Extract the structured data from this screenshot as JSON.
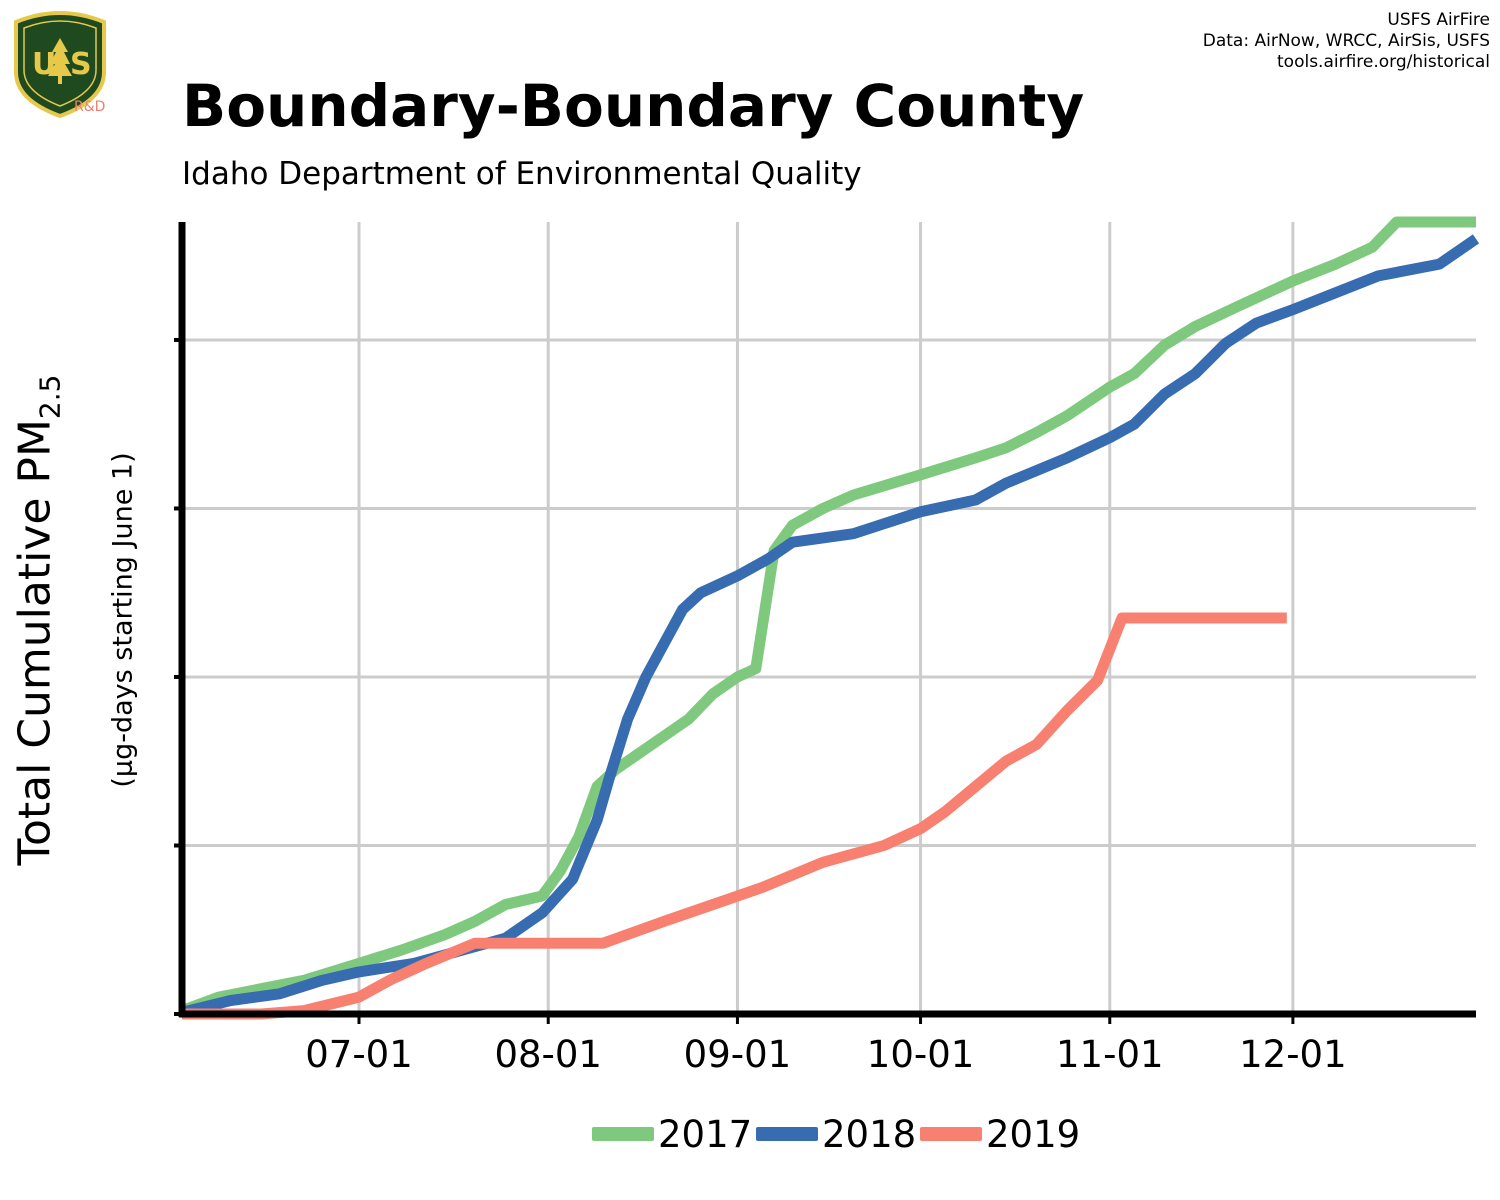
{
  "header": {
    "title": "Boundary-Boundary County",
    "subtitle": "Idaho Department of Environmental Quality",
    "credits": [
      "USFS AirFire",
      "Data: AirNow, WRCC, AirSis, USFS",
      "tools.airfire.org/historical"
    ],
    "logo_text": "U S",
    "logo_subtext": "R&D"
  },
  "axes": {
    "y_label_main": "Total Cumulative PM",
    "y_label_sub_script": "2.5",
    "y_label_secondary": "(µg-days starting June 1)"
  },
  "colors": {
    "s2017": "#7fc97f",
    "s2018": "#386cb0",
    "s2019": "#f88070",
    "grid": "#cccccc",
    "axis": "#000000"
  },
  "chart_data": {
    "type": "line",
    "title": "Boundary-Boundary County",
    "subtitle": "Idaho Department of Environmental Quality",
    "xlabel": "",
    "ylabel": "Total Cumulative PM2.5 (µg-days starting June 1)",
    "x_axis": {
      "type": "date",
      "range": [
        "06-02",
        "12-31"
      ],
      "ticks": [
        "07-01",
        "08-01",
        "09-01",
        "10-01",
        "11-01",
        "12-01"
      ]
    },
    "y_axis": {
      "range": [
        0,
        4.7
      ],
      "ticks": [
        0,
        1,
        2,
        3,
        4
      ],
      "tick_labels_shown": false
    },
    "grid": true,
    "legend_position": "bottom",
    "series": [
      {
        "name": "2017",
        "points": [
          [
            "06-02",
            0.02
          ],
          [
            "06-08",
            0.1
          ],
          [
            "06-15",
            0.15
          ],
          [
            "06-22",
            0.2
          ],
          [
            "07-01",
            0.3
          ],
          [
            "07-08",
            0.38
          ],
          [
            "07-15",
            0.47
          ],
          [
            "07-20",
            0.55
          ],
          [
            "07-25",
            0.65
          ],
          [
            "07-31",
            0.7
          ],
          [
            "08-03",
            0.85
          ],
          [
            "08-06",
            1.05
          ],
          [
            "08-09",
            1.35
          ],
          [
            "08-12",
            1.45
          ],
          [
            "08-18",
            1.6
          ],
          [
            "08-24",
            1.75
          ],
          [
            "08-28",
            1.9
          ],
          [
            "09-01",
            2.0
          ],
          [
            "09-04",
            2.05
          ],
          [
            "09-07",
            2.75
          ],
          [
            "09-10",
            2.9
          ],
          [
            "09-15",
            3.0
          ],
          [
            "09-20",
            3.08
          ],
          [
            "10-01",
            3.2
          ],
          [
            "10-10",
            3.3
          ],
          [
            "10-15",
            3.36
          ],
          [
            "10-20",
            3.45
          ],
          [
            "10-25",
            3.55
          ],
          [
            "11-01",
            3.72
          ],
          [
            "11-05",
            3.8
          ],
          [
            "11-10",
            3.97
          ],
          [
            "11-15",
            4.08
          ],
          [
            "11-22",
            4.2
          ],
          [
            "12-01",
            4.35
          ],
          [
            "12-08",
            4.45
          ],
          [
            "12-14",
            4.55
          ],
          [
            "12-18",
            4.7
          ],
          [
            "12-31",
            4.7
          ]
        ]
      },
      {
        "name": "2018",
        "points": [
          [
            "06-02",
            0.01
          ],
          [
            "06-10",
            0.08
          ],
          [
            "06-18",
            0.12
          ],
          [
            "06-25",
            0.2
          ],
          [
            "07-01",
            0.25
          ],
          [
            "07-10",
            0.3
          ],
          [
            "07-18",
            0.38
          ],
          [
            "07-25",
            0.45
          ],
          [
            "07-31",
            0.6
          ],
          [
            "08-05",
            0.8
          ],
          [
            "08-09",
            1.15
          ],
          [
            "08-11",
            1.4
          ],
          [
            "08-14",
            1.75
          ],
          [
            "08-17",
            2.0
          ],
          [
            "08-20",
            2.2
          ],
          [
            "08-23",
            2.4
          ],
          [
            "08-26",
            2.5
          ],
          [
            "09-01",
            2.6
          ],
          [
            "09-06",
            2.7
          ],
          [
            "09-10",
            2.8
          ],
          [
            "09-20",
            2.85
          ],
          [
            "10-01",
            2.98
          ],
          [
            "10-10",
            3.05
          ],
          [
            "10-15",
            3.15
          ],
          [
            "10-25",
            3.3
          ],
          [
            "11-01",
            3.42
          ],
          [
            "11-05",
            3.5
          ],
          [
            "11-10",
            3.68
          ],
          [
            "11-15",
            3.8
          ],
          [
            "11-20",
            3.98
          ],
          [
            "11-25",
            4.1
          ],
          [
            "12-01",
            4.18
          ],
          [
            "12-08",
            4.28
          ],
          [
            "12-15",
            4.38
          ],
          [
            "12-25",
            4.45
          ],
          [
            "12-31",
            4.6
          ]
        ]
      },
      {
        "name": "2019",
        "points": [
          [
            "06-02",
            0.0
          ],
          [
            "06-15",
            0.0
          ],
          [
            "06-22",
            0.02
          ],
          [
            "07-01",
            0.1
          ],
          [
            "07-06",
            0.2
          ],
          [
            "07-12",
            0.3
          ],
          [
            "07-20",
            0.42
          ],
          [
            "08-10",
            0.42
          ],
          [
            "08-20",
            0.55
          ],
          [
            "08-28",
            0.65
          ],
          [
            "09-05",
            0.75
          ],
          [
            "09-15",
            0.9
          ],
          [
            "09-25",
            1.0
          ],
          [
            "10-01",
            1.1
          ],
          [
            "10-05",
            1.2
          ],
          [
            "10-10",
            1.35
          ],
          [
            "10-15",
            1.5
          ],
          [
            "10-20",
            1.6
          ],
          [
            "10-25",
            1.8
          ],
          [
            "10-30",
            1.98
          ],
          [
            "11-03",
            2.35
          ],
          [
            "11-10",
            2.35
          ],
          [
            "11-20",
            2.35
          ],
          [
            "11-30",
            2.35
          ]
        ]
      }
    ]
  }
}
